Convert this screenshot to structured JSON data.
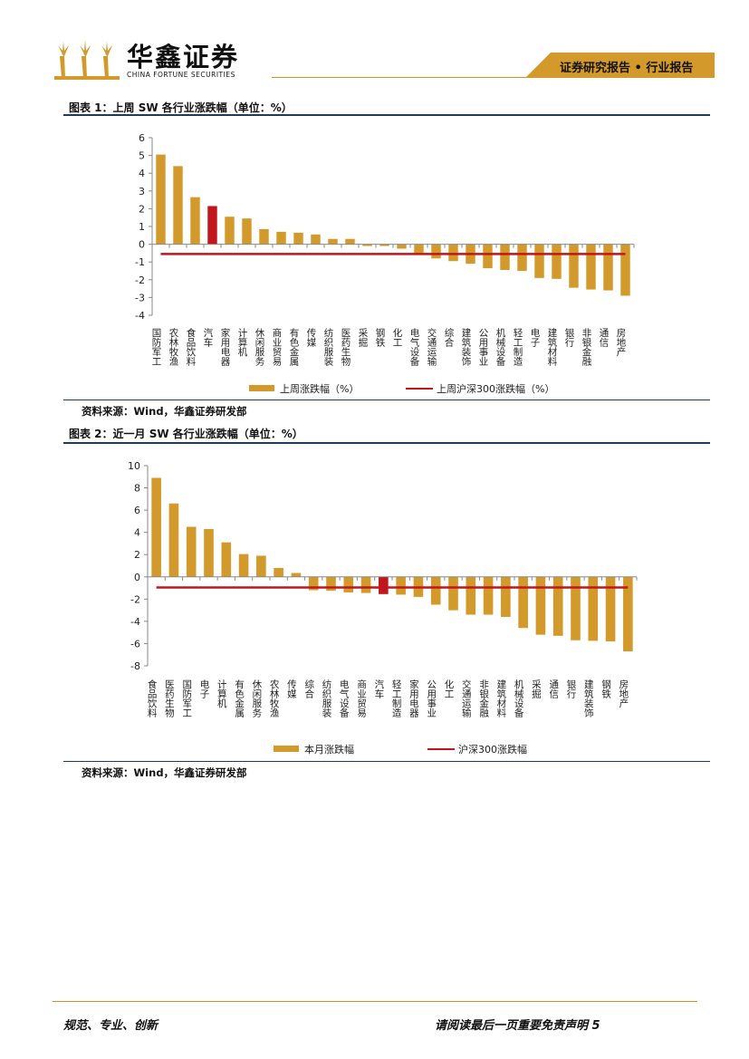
{
  "header": {
    "logo_text": "华鑫证券",
    "logo_sub": "CHINA FORTUNE SECURITIES",
    "tag": "证券研究报告 • 行业报告"
  },
  "figure1": {
    "title": "图表 1：上周 SW 各行业涨跌幅（单位：%）",
    "source": "资料来源：Wind，华鑫证券研发部"
  },
  "figure2": {
    "title": "图表 2：近一月 SW 各行业涨跌幅（单位：%）",
    "source": "资料来源：Wind，华鑫证券研发部"
  },
  "footer": {
    "left": "规范、专业、创新",
    "right": "请阅读最后一页重要免责声明 5"
  },
  "colors": {
    "bar": "#d39a2b",
    "highlight": "#c0161c",
    "line": "#c0161c",
    "axis": "#888888",
    "accent": "#c9922e",
    "rule": "#1f3a5a"
  },
  "chart_data": [
    {
      "type": "bar",
      "categories": [
        "国防军工",
        "农林牧渔",
        "食品饮料",
        "汽车",
        "家用电器",
        "计算机",
        "休闲服务",
        "商业贸易",
        "有色金属",
        "传媒",
        "纺织服装",
        "医药生物",
        "采掘",
        "钢铁",
        "化工",
        "电气设备",
        "交通运输",
        "综合",
        "建筑装饰",
        "公用事业",
        "机械设备",
        "轻工制造",
        "电子",
        "建筑材料",
        "银行",
        "非银金融",
        "通信",
        "房地产"
      ],
      "series": [
        {
          "name": "上周涨跌幅（%）",
          "values": [
            5.05,
            4.4,
            2.65,
            2.15,
            1.55,
            1.45,
            0.85,
            0.7,
            0.65,
            0.55,
            0.3,
            0.3,
            -0.1,
            -0.1,
            -0.25,
            -0.6,
            -0.8,
            -0.95,
            -1.1,
            -1.35,
            -1.45,
            -1.5,
            -1.9,
            -1.95,
            -2.45,
            -2.55,
            -2.6,
            -2.9
          ]
        },
        {
          "name": "上周沪深300涨跌幅（%）",
          "line_value": -0.55
        }
      ],
      "highlight_index": 3,
      "ylim": [
        -4,
        6
      ],
      "yticks": [
        6,
        5,
        4,
        3,
        2,
        1,
        0,
        -1,
        -2,
        -3,
        -4
      ],
      "legend_position": "bottom"
    },
    {
      "type": "bar",
      "categories": [
        "食品饮料",
        "医药生物",
        "国防军工",
        "电子",
        "计算机",
        "有色金属",
        "休闲服务",
        "农林牧渔",
        "传媒",
        "综合",
        "纺织服装",
        "电气设备",
        "商业贸易",
        "汽车",
        "轻工制造",
        "家用电器",
        "公用事业",
        "化工",
        "交通运输",
        "非银金融",
        "建筑材料",
        "机械设备",
        "采掘",
        "通信",
        "银行",
        "建筑装饰",
        "钢铁",
        "房地产"
      ],
      "series": [
        {
          "name": "本月涨跌幅",
          "values": [
            8.9,
            6.6,
            4.5,
            4.3,
            3.1,
            2.05,
            1.9,
            0.8,
            0.35,
            -1.2,
            -1.25,
            -1.4,
            -1.45,
            -1.55,
            -1.6,
            -1.8,
            -2.5,
            -3.0,
            -3.4,
            -3.4,
            -3.6,
            -4.6,
            -5.2,
            -5.3,
            -5.7,
            -5.75,
            -5.8,
            -6.7
          ]
        },
        {
          "name": "沪深300涨跌幅",
          "line_value": -0.95
        }
      ],
      "highlight_index": 13,
      "ylim": [
        -8,
        10
      ],
      "yticks": [
        10,
        8,
        6,
        4,
        2,
        0,
        -2,
        -4,
        -6,
        -8
      ],
      "legend_position": "bottom"
    }
  ]
}
